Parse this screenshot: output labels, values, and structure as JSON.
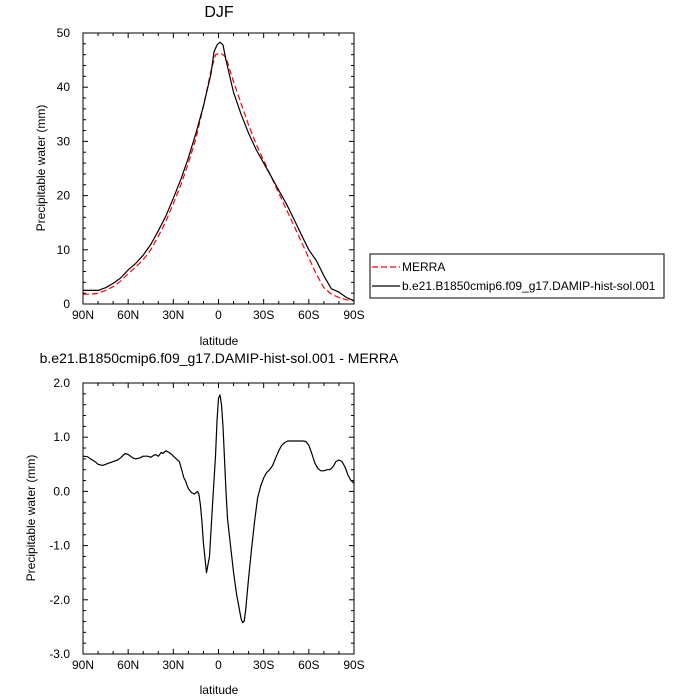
{
  "chart_data": [
    {
      "type": "line",
      "title": "DJF",
      "xlabel": "latitude",
      "ylabel": "Precipitable water (mm)",
      "x_ticks": [
        "90N",
        "60N",
        "30N",
        "0",
        "30S",
        "60S",
        "90S"
      ],
      "x_tick_values": [
        90,
        60,
        30,
        0,
        -30,
        -60,
        -90
      ],
      "ylim": [
        0,
        50
      ],
      "y_ticks": [
        "0",
        "10",
        "20",
        "30",
        "40",
        "50"
      ],
      "y_tick_values": [
        0,
        10,
        20,
        30,
        40,
        50
      ],
      "legend_position": "right",
      "series": [
        {
          "name": "MERRA",
          "color": "#ff0000",
          "style": "dashed",
          "x": [
            90,
            85,
            80,
            75,
            70,
            65,
            60,
            55,
            50,
            45,
            40,
            35,
            30,
            25,
            20,
            15,
            10,
            5,
            2,
            0,
            -2,
            -5,
            -10,
            -15,
            -20,
            -25,
            -30,
            -35,
            -40,
            -45,
            -50,
            -55,
            -60,
            -65,
            -70,
            -75,
            -80,
            -85,
            -90
          ],
          "y": [
            1.8,
            1.8,
            2.0,
            2.5,
            3.2,
            4.2,
            5.6,
            6.8,
            8.2,
            10.0,
            12.5,
            15.2,
            18.5,
            22.0,
            26.0,
            30.5,
            36.5,
            43.0,
            46.0,
            46.2,
            46.2,
            45.5,
            41.0,
            37.0,
            33.0,
            29.5,
            26.5,
            23.5,
            20.5,
            17.5,
            14.5,
            11.5,
            8.5,
            5.5,
            3.0,
            1.8,
            1.2,
            0.8,
            0.6
          ]
        },
        {
          "name": "b.e21.B1850cmip6.f09_g17.DAMIP-hist-sol.001",
          "color": "#000000",
          "style": "solid",
          "x": [
            90,
            85,
            80,
            75,
            70,
            65,
            60,
            55,
            50,
            45,
            40,
            35,
            30,
            25,
            20,
            15,
            10,
            5,
            3,
            1,
            -1,
            -3,
            -5,
            -10,
            -15,
            -20,
            -25,
            -30,
            -35,
            -40,
            -45,
            -50,
            -55,
            -60,
            -65,
            -70,
            -75,
            -80,
            -85,
            -90
          ],
          "y": [
            2.5,
            2.5,
            2.5,
            3.0,
            3.8,
            4.8,
            6.3,
            7.5,
            9.0,
            11.0,
            13.5,
            16.2,
            19.5,
            23.0,
            27.0,
            31.5,
            36.5,
            42.5,
            46.5,
            47.8,
            48.3,
            47.8,
            45.0,
            39.0,
            35.0,
            31.5,
            28.5,
            26.0,
            23.5,
            21.0,
            18.5,
            15.7,
            12.8,
            10.0,
            8.0,
            5.2,
            2.8,
            2.2,
            1.2,
            0.6
          ]
        }
      ]
    },
    {
      "type": "line",
      "title": "b.e21.B1850cmip6.f09_g17.DAMIP-hist-sol.001 - MERRA",
      "xlabel": "latitude",
      "ylabel": "Precipitable water (mm)",
      "x_ticks": [
        "90N",
        "60N",
        "30N",
        "0",
        "30S",
        "60S",
        "90S"
      ],
      "x_tick_values": [
        90,
        60,
        30,
        0,
        -30,
        -60,
        -90
      ],
      "ylim": [
        -3,
        2
      ],
      "y_ticks": [
        "-3.0",
        "-2.0",
        "-1.0",
        "0.0",
        "1.0",
        "2.0"
      ],
      "y_tick_values": [
        -3,
        -2,
        -1,
        0,
        1,
        2
      ],
      "series": [
        {
          "color": "#000000",
          "style": "solid",
          "x": [
            90,
            87,
            85,
            82,
            80,
            77,
            75,
            72,
            70,
            67,
            65,
            62,
            60,
            57,
            55,
            52,
            50,
            47,
            45,
            42,
            40,
            38,
            37,
            35,
            33,
            31,
            30,
            28,
            26,
            25,
            24,
            23,
            22,
            21,
            20,
            18,
            16,
            14,
            13,
            12,
            11,
            10,
            8,
            6,
            4,
            2,
            1,
            0,
            -1,
            -2,
            -3,
            -4,
            -5,
            -6,
            -8,
            -10,
            -12,
            -14,
            -15,
            -16,
            -17,
            -18,
            -20,
            -22,
            -24,
            -26,
            -28,
            -30,
            -32,
            -34,
            -36,
            -38,
            -40,
            -42,
            -44,
            -46,
            -48,
            -50,
            -52,
            -54,
            -56,
            -58,
            -60,
            -62,
            -64,
            -66,
            -68,
            -70,
            -72,
            -74,
            -76,
            -78,
            -80,
            -82,
            -84,
            -86,
            -88,
            -90
          ],
          "y": [
            0.65,
            0.64,
            0.6,
            0.55,
            0.5,
            0.48,
            0.5,
            0.53,
            0.55,
            0.58,
            0.62,
            0.7,
            0.68,
            0.62,
            0.6,
            0.62,
            0.65,
            0.65,
            0.63,
            0.68,
            0.65,
            0.72,
            0.7,
            0.75,
            0.72,
            0.68,
            0.65,
            0.6,
            0.55,
            0.45,
            0.35,
            0.25,
            0.2,
            0.12,
            0.05,
            -0.02,
            -0.05,
            0.0,
            -0.05,
            -0.25,
            -0.55,
            -0.95,
            -1.5,
            -1.2,
            -0.25,
            0.65,
            1.3,
            1.72,
            1.78,
            1.6,
            1.2,
            0.6,
            0.0,
            -0.5,
            -1.0,
            -1.5,
            -1.9,
            -2.2,
            -2.35,
            -2.42,
            -2.4,
            -2.2,
            -1.6,
            -1.05,
            -0.55,
            -0.12,
            0.1,
            0.25,
            0.35,
            0.4,
            0.48,
            0.62,
            0.75,
            0.85,
            0.9,
            0.93,
            0.93,
            0.93,
            0.93,
            0.93,
            0.93,
            0.92,
            0.85,
            0.7,
            0.52,
            0.42,
            0.38,
            0.38,
            0.4,
            0.4,
            0.45,
            0.55,
            0.58,
            0.55,
            0.45,
            0.3,
            0.2,
            0.15
          ]
        }
      ]
    }
  ]
}
